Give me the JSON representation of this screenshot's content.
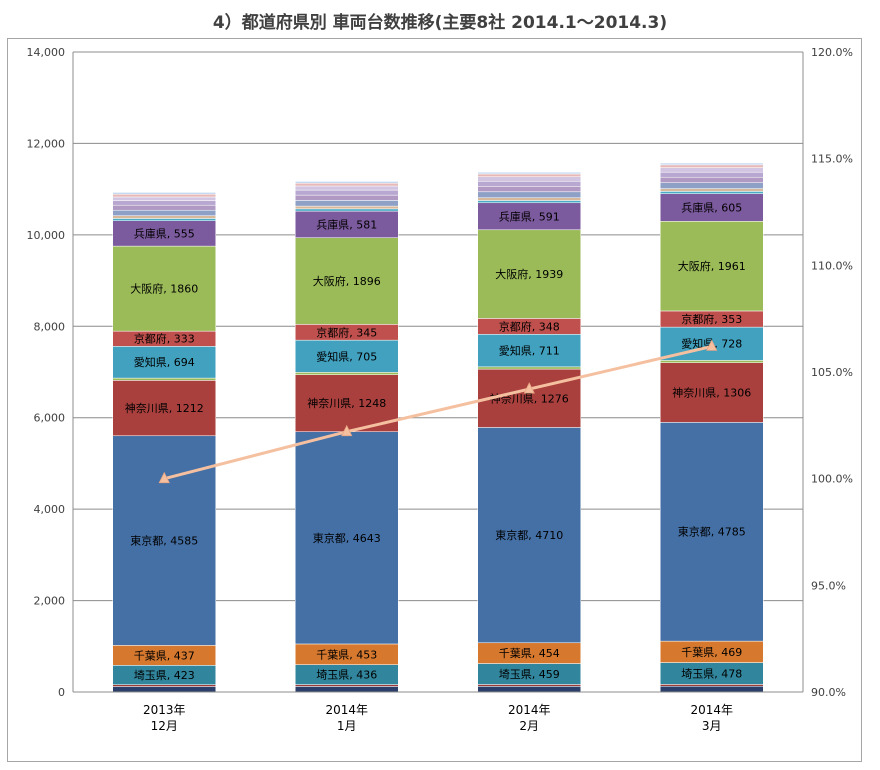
{
  "chart_data": {
    "type": "bar",
    "title": "4）都道府県別 車両台数推移(主要8社 2014.1～2014.3)",
    "stacked": true,
    "categories": [
      [
        "2013年",
        "12月"
      ],
      [
        "2014年",
        "1月"
      ],
      [
        "2014年",
        "2月"
      ],
      [
        "2014年",
        "3月"
      ]
    ],
    "ylim": [
      0,
      14000
    ],
    "yticks": [
      0,
      2000,
      4000,
      6000,
      8000,
      10000,
      12000,
      14000
    ],
    "ytick_labels": [
      "0",
      "2,000",
      "4,000",
      "6,000",
      "8,000",
      "10,000",
      "12,000",
      "14,000"
    ],
    "y2lim": [
      90,
      120
    ],
    "y2ticks": [
      90,
      95,
      100,
      105,
      110,
      115,
      120
    ],
    "y2tick_labels": [
      "90.0%",
      "95.0%",
      "100.0%",
      "105.0%",
      "110.0%",
      "115.0%",
      "120.0%"
    ],
    "grid": true,
    "series": [
      {
        "values": [
          120,
          122,
          124,
          126
        ],
        "color": "#2a3f6a",
        "label": false
      },
      {
        "values": [
          40,
          40,
          40,
          40
        ],
        "color": "#9b3a37",
        "label": false
      },
      {
        "values": [
          423,
          436,
          459,
          478
        ],
        "color": "#31859c",
        "label": true,
        "name": "埼玉県"
      },
      {
        "values": [
          437,
          453,
          454,
          469
        ],
        "color": "#d6792f",
        "label": true,
        "name": "千葉県"
      },
      {
        "values": [
          4585,
          4643,
          4710,
          4785
        ],
        "color": "#4470a6",
        "label": true,
        "name": "東京都"
      },
      {
        "values": [
          1212,
          1248,
          1276,
          1306
        ],
        "color": "#a9403e",
        "label": true,
        "name": "神奈川県"
      },
      {
        "values": [
          50,
          50,
          50,
          50
        ],
        "color": "#9bbb59",
        "label": false
      },
      {
        "values": [
          694,
          705,
          711,
          728
        ],
        "color": "#41a1bf",
        "label": true,
        "name": "愛知県"
      },
      {
        "values": [
          333,
          345,
          348,
          353
        ],
        "color": "#c0504d",
        "label": true,
        "name": "京都府"
      },
      {
        "values": [
          1860,
          1896,
          1939,
          1961
        ],
        "color": "#9bbb59",
        "label": true,
        "name": "大阪府"
      },
      {
        "values": [
          555,
          581,
          591,
          605
        ],
        "color": "#7c5a9e",
        "label": true,
        "name": "兵庫県"
      },
      {
        "values": [
          50,
          50,
          50,
          50
        ],
        "color": "#4bacc6",
        "label": false
      },
      {
        "values": [
          60,
          60,
          60,
          60
        ],
        "color": "#d8b89a",
        "label": false
      },
      {
        "values": [
          120,
          125,
          130,
          130
        ],
        "color": "#8ea0c6",
        "label": false
      },
      {
        "values": [
          110,
          115,
          120,
          120
        ],
        "color": "#b09ac4",
        "label": false
      },
      {
        "values": [
          100,
          110,
          110,
          110
        ],
        "color": "#b8a7d0",
        "label": false
      },
      {
        "values": [
          80,
          90,
          100,
          100
        ],
        "color": "#d2c5e2",
        "label": false
      },
      {
        "values": [
          60,
          60,
          60,
          60
        ],
        "color": "#e6b8b7",
        "label": false
      },
      {
        "values": [
          40,
          40,
          40,
          40
        ],
        "color": "#c5d9f1",
        "label": false
      }
    ],
    "line": {
      "axis": "right",
      "values": [
        100.0,
        102.2,
        104.2,
        106.2
      ],
      "color": "#f5c0a0"
    }
  }
}
